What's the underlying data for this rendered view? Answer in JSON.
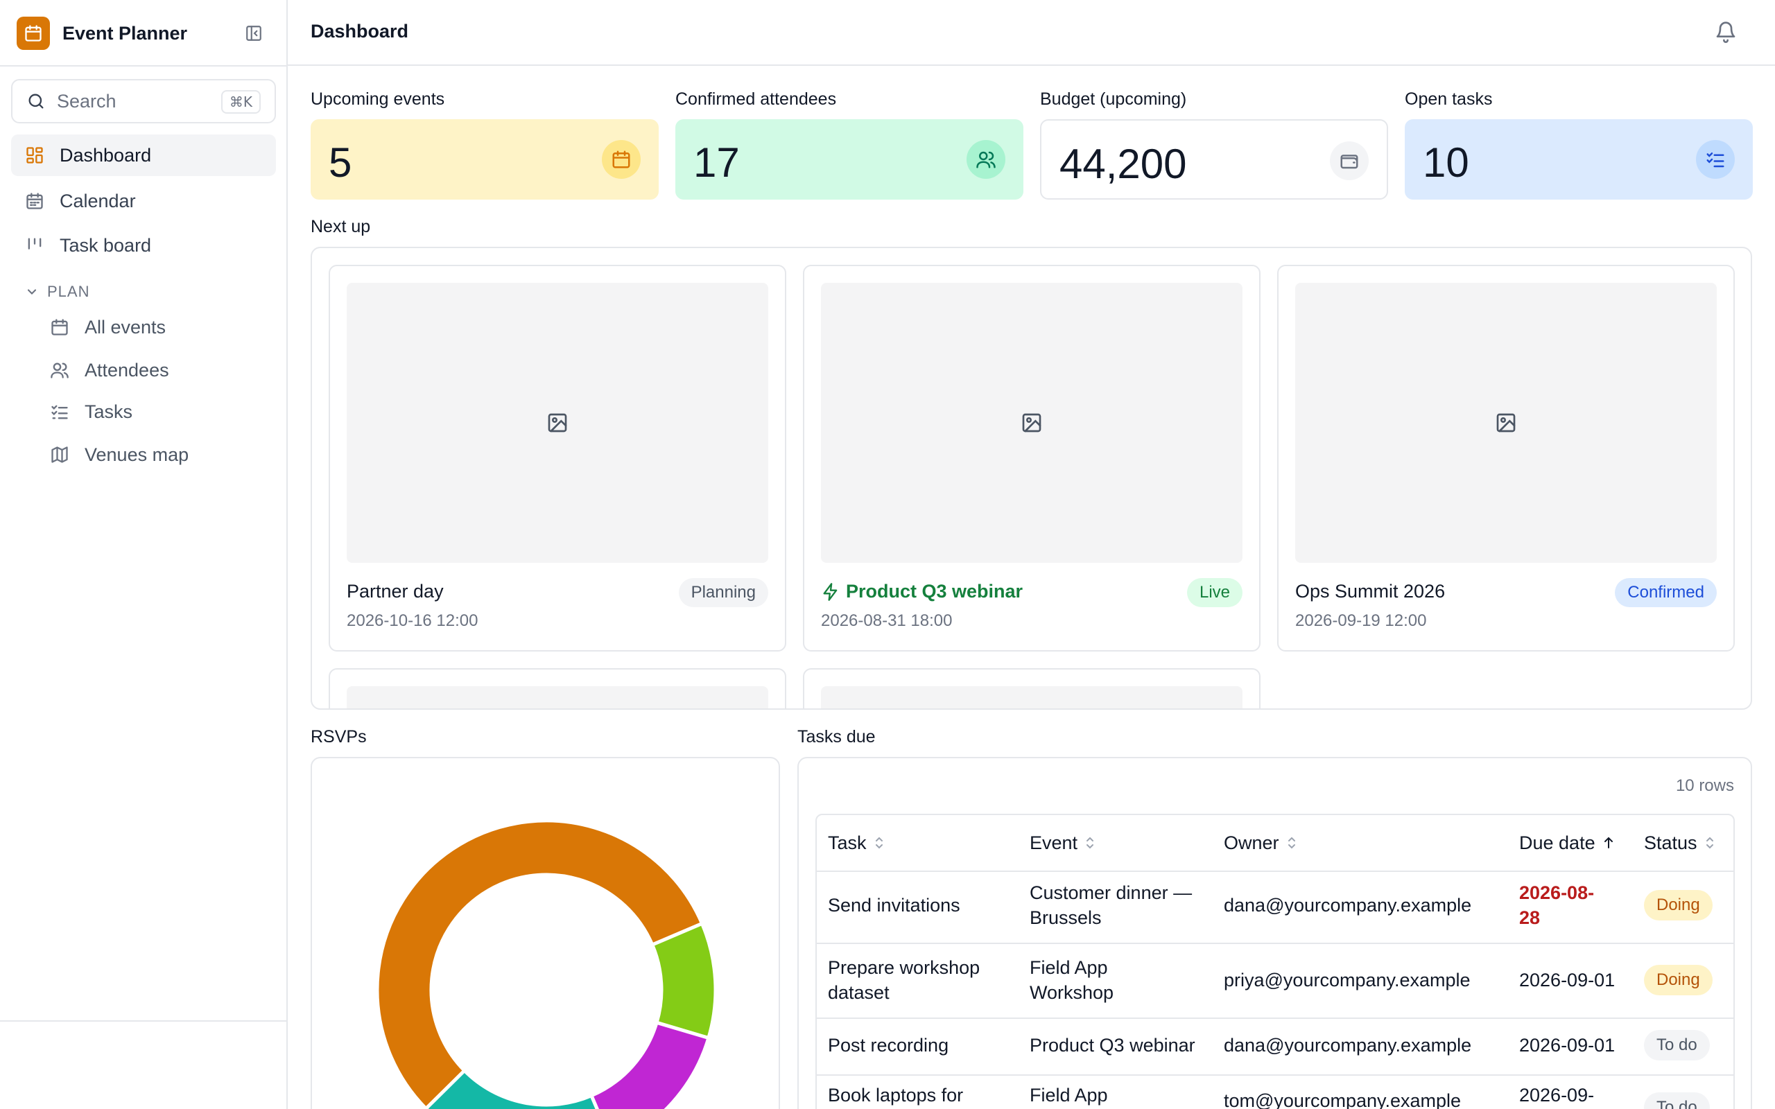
{
  "app": {
    "title": "Event Planner"
  },
  "search": {
    "label": "Search",
    "shortcut": "⌘K"
  },
  "sidebar": {
    "items": [
      {
        "label": "Dashboard",
        "icon": "dashboard-icon",
        "active": true
      },
      {
        "label": "Calendar",
        "icon": "calendar-icon"
      },
      {
        "label": "Task board",
        "icon": "kanban-icon"
      }
    ],
    "section": {
      "label": "PLAN",
      "items": [
        {
          "label": "All events",
          "icon": "calendar-icon"
        },
        {
          "label": "Attendees",
          "icon": "users-icon"
        },
        {
          "label": "Tasks",
          "icon": "checklist-icon"
        },
        {
          "label": "Venues map",
          "icon": "map-icon"
        }
      ]
    }
  },
  "header": {
    "title": "Dashboard"
  },
  "kpis": [
    {
      "label": "Upcoming events",
      "value": "5",
      "icon": "calendar-icon",
      "bg": "#fef3c7",
      "icon_bg": "#fde68a",
      "icon_color": "#d97706"
    },
    {
      "label": "Confirmed attendees",
      "value": "17",
      "icon": "users-icon",
      "bg": "#d1fae5",
      "icon_bg": "#a7f3d0",
      "icon_color": "#047857"
    },
    {
      "label": "Budget (upcoming)",
      "value": "44,200",
      "icon": "wallet-icon",
      "bg": "#ffffff",
      "icon_bg": "#f3f4f6",
      "icon_color": "#6b7280"
    },
    {
      "label": "Open tasks",
      "value": "10",
      "icon": "checklist-icon",
      "bg": "#dbeafe",
      "icon_bg": "#bfdbfe",
      "icon_color": "#1d4ed8"
    }
  ],
  "next_up": {
    "title": "Next up",
    "events": [
      {
        "title": "Partner day",
        "date": "2026-10-16 12:00",
        "status": "Planning",
        "live": false
      },
      {
        "title": "Product Q3 webinar",
        "date": "2026-08-31 18:00",
        "status": "Live",
        "live": true
      },
      {
        "title": "Ops Summit 2026",
        "date": "2026-09-19 12:00",
        "status": "Confirmed",
        "live": false
      }
    ]
  },
  "rsvps": {
    "title": "RSVPs",
    "colors": [
      "#d97706",
      "#84cc16",
      "#c026d3",
      "#14b8a6"
    ],
    "shares": [
      0.56,
      0.11,
      0.14,
      0.19
    ]
  },
  "tasks_due": {
    "title": "Tasks due",
    "rows_label": "10 rows",
    "columns": [
      "Task",
      "Event",
      "Owner",
      "Due date",
      "Status"
    ],
    "rows": [
      {
        "task": [
          "Send invitations"
        ],
        "event": [
          "Customer dinner —",
          "Brussels"
        ],
        "owner": "dana@yourcompany.example",
        "due": [
          "2026-08-",
          "28"
        ],
        "overdue": true,
        "status": "Doing"
      },
      {
        "task": [
          "Prepare workshop",
          "dataset"
        ],
        "event": [
          "Field App",
          "Workshop"
        ],
        "owner": "priya@yourcompany.example",
        "due": [
          "2026-09-01"
        ],
        "overdue": false,
        "status": "Doing"
      },
      {
        "task": [
          "Post recording"
        ],
        "event": [
          "Product Q3 webinar"
        ],
        "owner": "dana@yourcompany.example",
        "due": [
          "2026-09-01"
        ],
        "overdue": false,
        "status": "To do"
      },
      {
        "task": [
          "Book laptops for"
        ],
        "event": [
          "Field App"
        ],
        "owner": "tom@yourcompany.example",
        "due": [
          "2026-09-"
        ],
        "overdue": false,
        "status": "To do"
      }
    ]
  }
}
